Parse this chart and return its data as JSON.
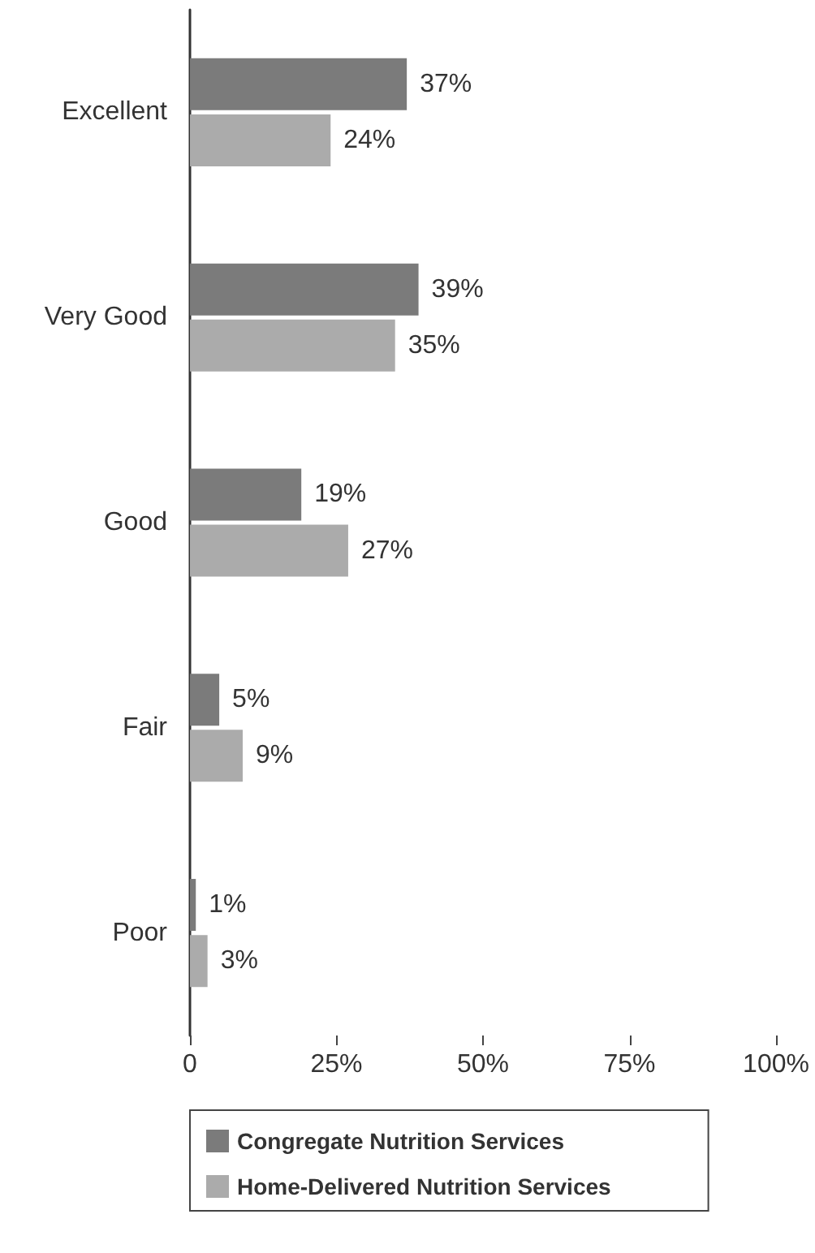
{
  "chart_data": {
    "type": "bar",
    "orientation": "horizontal",
    "categories": [
      "Excellent",
      "Very Good",
      "Good",
      "Fair",
      "Poor"
    ],
    "series": [
      {
        "name": "Congregate Nutrition Services",
        "color": "#7b7b7b",
        "values": [
          37,
          39,
          19,
          5,
          1
        ],
        "value_labels": [
          "37%",
          "39%",
          "19%",
          "5%",
          "1%"
        ]
      },
      {
        "name": "Home-Delivered Nutrition Services",
        "color": "#ababab",
        "values": [
          24,
          35,
          27,
          9,
          3
        ],
        "value_labels": [
          "24%",
          "35%",
          "27%",
          "9%",
          "3%"
        ]
      }
    ],
    "xlim": [
      0,
      100
    ],
    "xticks": [
      0,
      {
        "value": 25,
        "label": "25%"
      },
      {
        "value": 50,
        "label": "50%"
      },
      {
        "value": 75,
        "label": "75%"
      },
      {
        "value": 100,
        "label": "100%"
      }
    ],
    "grid": false,
    "legend": "bottom"
  }
}
